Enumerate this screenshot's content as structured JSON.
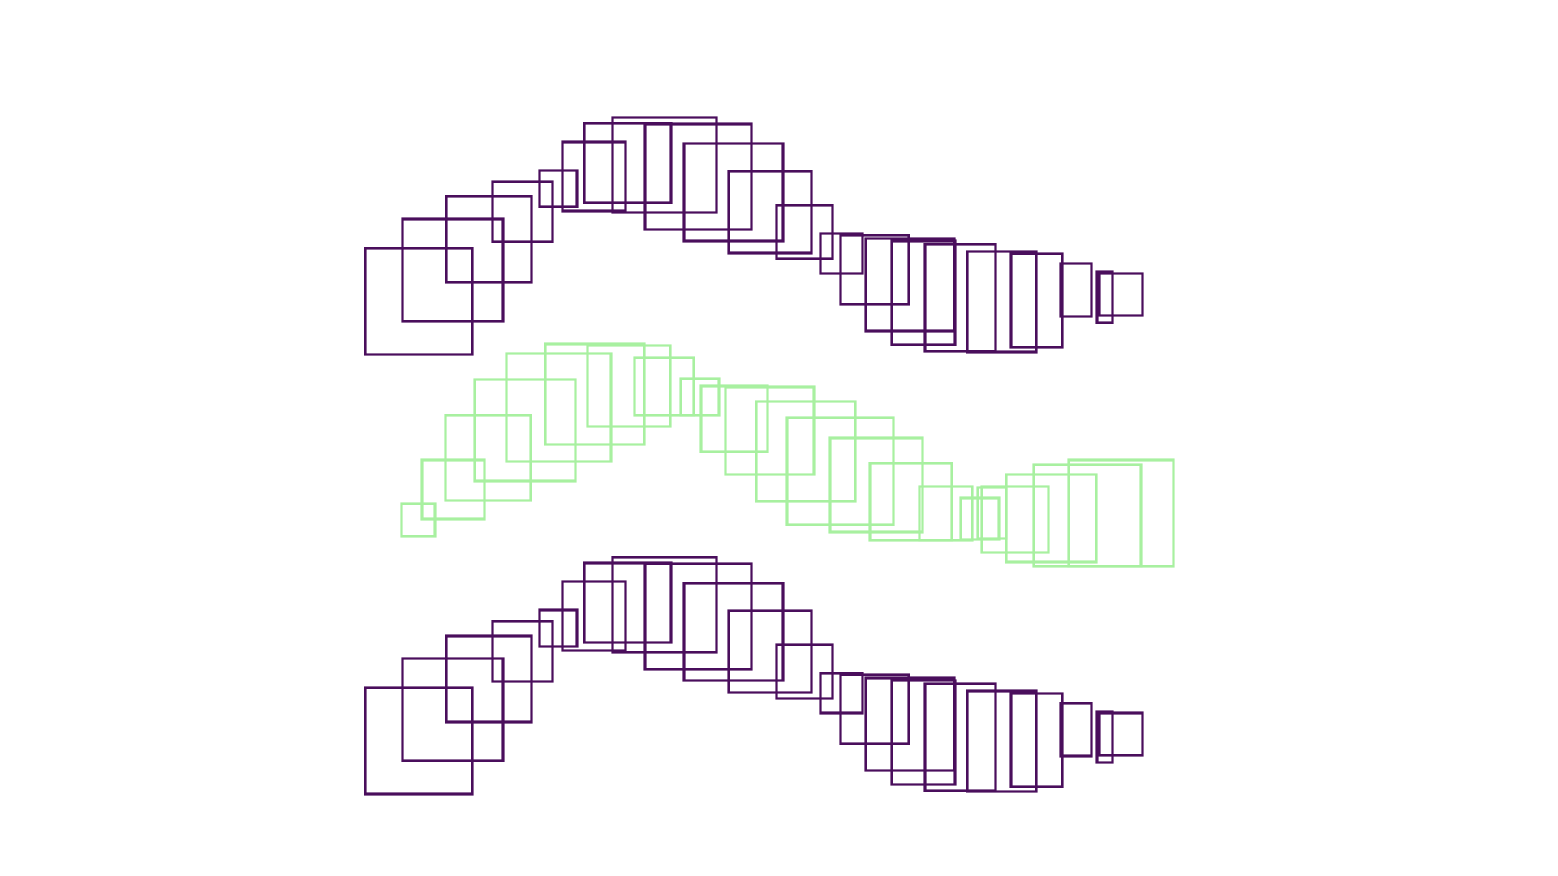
{
  "colors": {
    "background": "#ffffff",
    "dark_purple": "#4a0e5c",
    "light_green": "#a8f0a0"
  },
  "chains": [
    {
      "id": "top",
      "color": "#4a0e5c"
    },
    {
      "id": "middle",
      "color": "#a8f0a0"
    },
    {
      "id": "bottom",
      "color": "#4a0e5c"
    }
  ]
}
